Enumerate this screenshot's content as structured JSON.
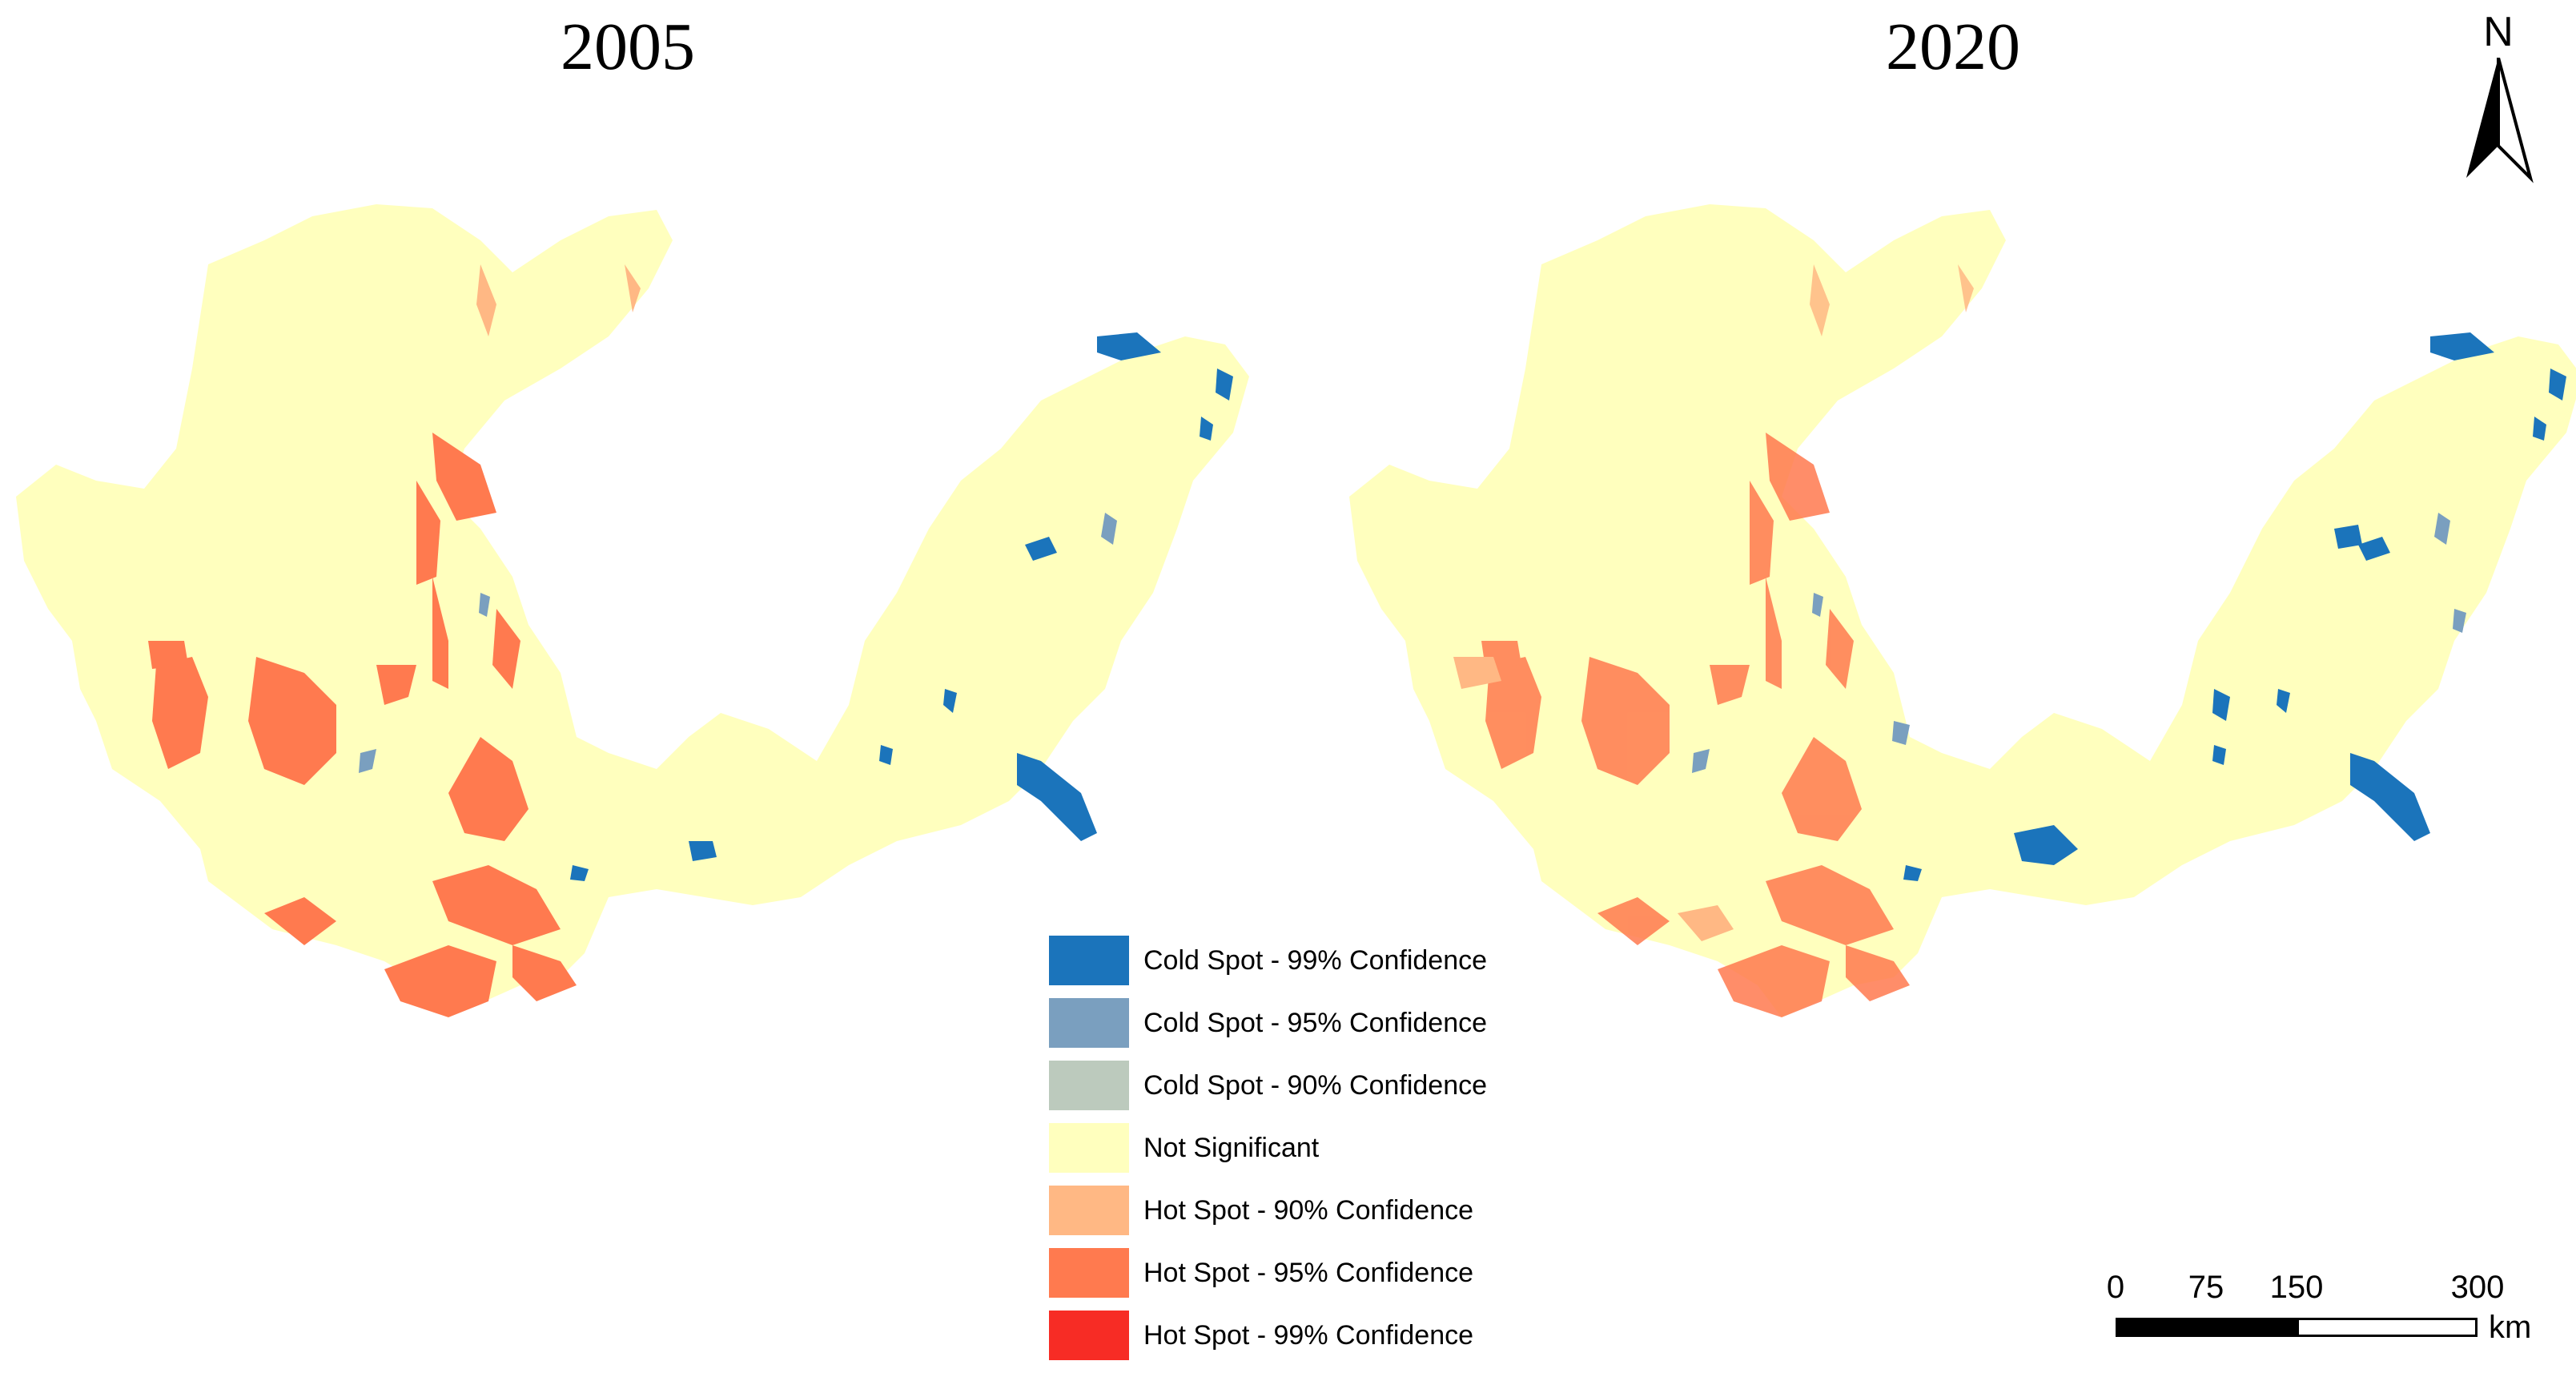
{
  "maps": [
    {
      "year_label": "2005"
    },
    {
      "year_label": "2020"
    }
  ],
  "legend": [
    {
      "label": "Cold Spot - 99% Confidence",
      "color": "#1b74bb"
    },
    {
      "label": "Cold Spot - 95% Confidence",
      "color": "#7a9fbf"
    },
    {
      "label": "Cold Spot - 90% Confidence",
      "color": "#bccabd"
    },
    {
      "label": "Not Significant",
      "color": "#ffffbe"
    },
    {
      "label": "Hot Spot - 90% Confidence",
      "color": "#ffb884"
    },
    {
      "label": "Hot Spot - 95% Confidence",
      "color": "#ff7a4f"
    },
    {
      "label": "Hot Spot - 99% Confidence",
      "color": "#f72c25"
    }
  ],
  "north_arrow": {
    "label": "N"
  },
  "scale_bar": {
    "ticks": [
      "0",
      "75",
      "150",
      "300"
    ],
    "unit": "km"
  }
}
